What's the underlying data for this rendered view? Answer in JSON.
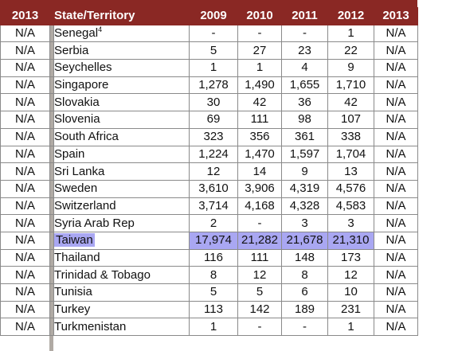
{
  "table": {
    "headers": {
      "left_year": "2013",
      "state": "State/Territory",
      "y2009": "2009",
      "y2010": "2010",
      "y2011": "2011",
      "y2012": "2012",
      "y2013": "2013"
    },
    "highlight_color": "#a9a7f2",
    "header_color": "#8a2824",
    "rows": [
      {
        "left": "N/A",
        "state": "Senegal",
        "sup": "4",
        "v2009": "-",
        "v2010": "-",
        "v2011": "-",
        "v2012": "1",
        "v2013": "N/A",
        "highlight": false
      },
      {
        "left": "N/A",
        "state": "Serbia",
        "sup": "",
        "v2009": "5",
        "v2010": "27",
        "v2011": "23",
        "v2012": "22",
        "v2013": "N/A",
        "highlight": false
      },
      {
        "left": "N/A",
        "state": "Seychelles",
        "sup": "",
        "v2009": "1",
        "v2010": "1",
        "v2011": "4",
        "v2012": "9",
        "v2013": "N/A",
        "highlight": false
      },
      {
        "left": "N/A",
        "state": "Singapore",
        "sup": "",
        "v2009": "1,278",
        "v2010": "1,490",
        "v2011": "1,655",
        "v2012": "1,710",
        "v2013": "N/A",
        "highlight": false
      },
      {
        "left": "N/A",
        "state": "Slovakia",
        "sup": "",
        "v2009": "30",
        "v2010": "42",
        "v2011": "36",
        "v2012": "42",
        "v2013": "N/A",
        "highlight": false
      },
      {
        "left": "N/A",
        "state": "Slovenia",
        "sup": "",
        "v2009": "69",
        "v2010": "111",
        "v2011": "98",
        "v2012": "107",
        "v2013": "N/A",
        "highlight": false
      },
      {
        "left": "N/A",
        "state": "South Africa",
        "sup": "",
        "v2009": "323",
        "v2010": "356",
        "v2011": "361",
        "v2012": "338",
        "v2013": "N/A",
        "highlight": false
      },
      {
        "left": "N/A",
        "state": "Spain",
        "sup": "",
        "v2009": "1,224",
        "v2010": "1,470",
        "v2011": "1,597",
        "v2012": "1,704",
        "v2013": "N/A",
        "highlight": false
      },
      {
        "left": "N/A",
        "state": "Sri Lanka",
        "sup": "",
        "v2009": "12",
        "v2010": "14",
        "v2011": "9",
        "v2012": "13",
        "v2013": "N/A",
        "highlight": false
      },
      {
        "left": "N/A",
        "state": "Sweden",
        "sup": "",
        "v2009": "3,610",
        "v2010": "3,906",
        "v2011": "4,319",
        "v2012": "4,576",
        "v2013": "N/A",
        "highlight": false
      },
      {
        "left": "N/A",
        "state": "Switzerland",
        "sup": "",
        "v2009": "3,714",
        "v2010": "4,168",
        "v2011": "4,328",
        "v2012": "4,583",
        "v2013": "N/A",
        "highlight": false
      },
      {
        "left": "N/A",
        "state": "Syria Arab Rep",
        "sup": "",
        "v2009": "2",
        "v2010": "-",
        "v2011": "3",
        "v2012": "3",
        "v2013": "N/A",
        "highlight": false
      },
      {
        "left": "N/A",
        "state": "Taiwan",
        "sup": "",
        "v2009": "17,974",
        "v2010": "21,282",
        "v2011": "21,678",
        "v2012": "21,310",
        "v2013": "N/A",
        "highlight": true
      },
      {
        "left": "N/A",
        "state": "Thailand",
        "sup": "",
        "v2009": "116",
        "v2010": "111",
        "v2011": "148",
        "v2012": "173",
        "v2013": "N/A",
        "highlight": false
      },
      {
        "left": "N/A",
        "state": "Trinidad & Tobago",
        "sup": "",
        "v2009": "8",
        "v2010": "12",
        "v2011": "8",
        "v2012": "12",
        "v2013": "N/A",
        "highlight": false
      },
      {
        "left": "N/A",
        "state": "Tunisia",
        "sup": "",
        "v2009": "5",
        "v2010": "5",
        "v2011": "6",
        "v2012": "10",
        "v2013": "N/A",
        "highlight": false
      },
      {
        "left": "N/A",
        "state": "Turkey",
        "sup": "",
        "v2009": "113",
        "v2010": "142",
        "v2011": "189",
        "v2012": "231",
        "v2013": "N/A",
        "highlight": false
      },
      {
        "left": "N/A",
        "state": "Turkmenistan",
        "sup": "",
        "v2009": "1",
        "v2010": "-",
        "v2011": "-",
        "v2012": "1",
        "v2013": "N/A",
        "highlight": false
      }
    ]
  }
}
